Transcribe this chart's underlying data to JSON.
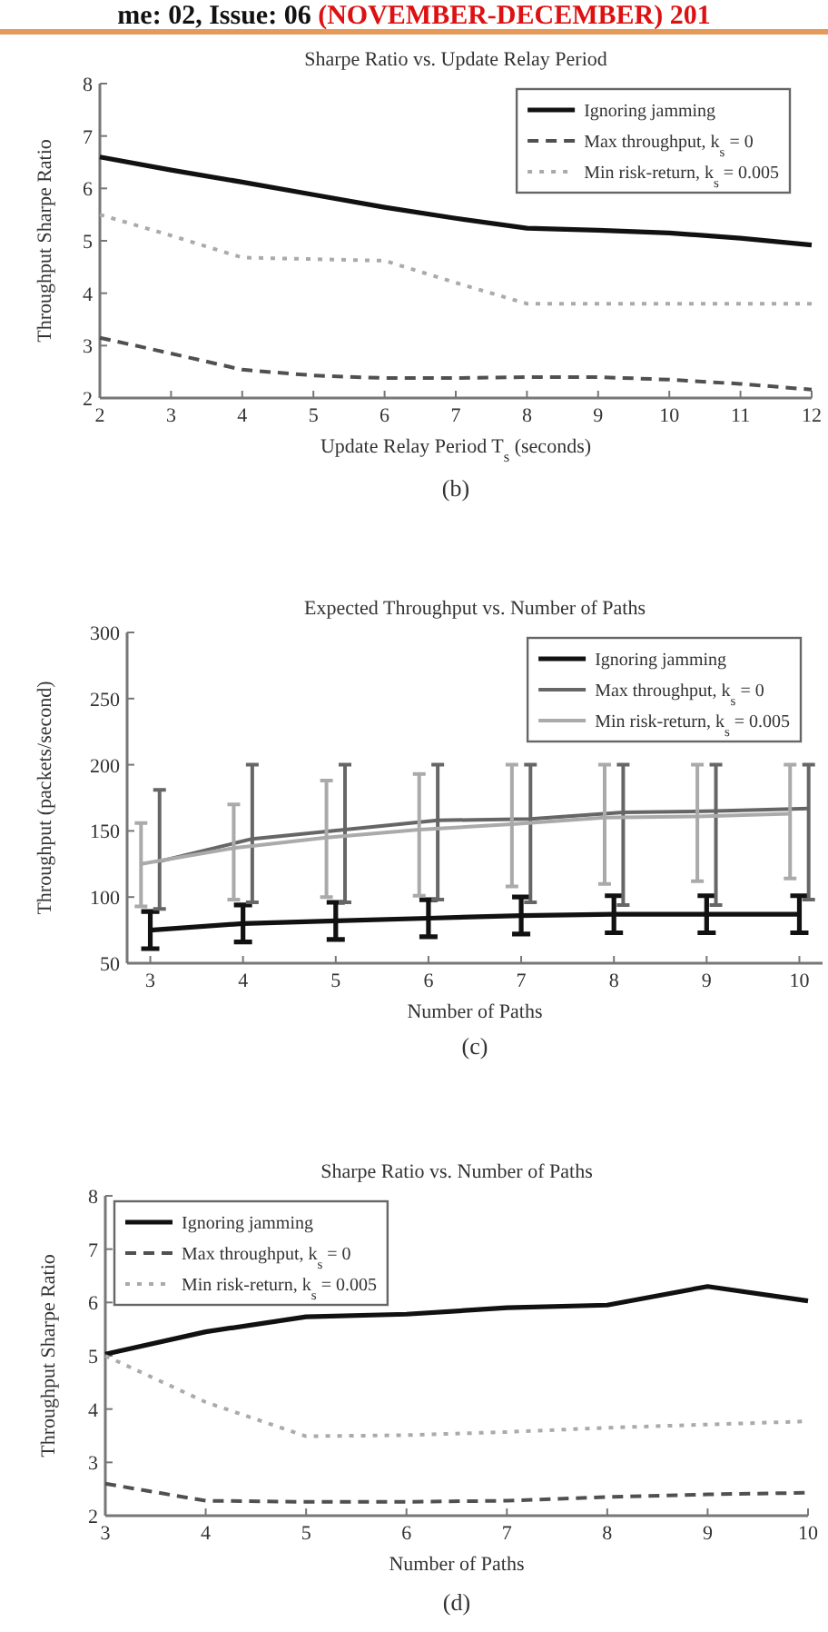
{
  "chart_data": [
    {
      "type": "line",
      "title": "Sharpe Ratio vs. Update Relay Period",
      "xlabel": "Update Relay Period T$_{s}$ (seconds)",
      "ylabel": "Throughput Sharpe Ratio",
      "annotations": [
        "me: 02, Issue: 06",
        "(NOVEMBER-DECEMBER) 201",
        "(b)"
      ],
      "x": [
        2,
        3,
        4,
        5,
        6,
        7,
        8,
        9,
        10,
        11,
        12
      ],
      "xlim": [
        2,
        12
      ],
      "xticks": [
        2,
        3,
        4,
        5,
        6,
        7,
        8,
        9,
        10,
        11,
        12
      ],
      "ylim": [
        2,
        8
      ],
      "yticks": [
        2,
        3,
        4,
        5,
        6,
        7,
        8
      ],
      "legend": "top right",
      "series": [
        {
          "name": "Ignoring jamming",
          "color": "#111111",
          "line_style": "solid",
          "values": [
            6.6,
            6.35,
            6.12,
            5.88,
            5.64,
            5.43,
            5.24,
            5.2,
            5.15,
            5.05,
            4.92
          ]
        },
        {
          "name": "Max throughput, k$_{s}$ = 0",
          "color": "#505050",
          "line_style": "dashed",
          "values": [
            3.15,
            2.85,
            2.54,
            2.43,
            2.38,
            2.38,
            2.4,
            2.4,
            2.35,
            2.27,
            2.16
          ]
        },
        {
          "name": "Min risk-return, k$_{s}$ = 0.005",
          "color": "#aaaaaa",
          "line_style": "dotted",
          "values": [
            5.5,
            5.1,
            4.68,
            4.65,
            4.62,
            4.2,
            3.8,
            3.8,
            3.8,
            3.8,
            3.8
          ]
        }
      ]
    },
    {
      "type": "line",
      "title": "Expected Throughput vs. Number of Paths",
      "xlabel": "Number of Paths",
      "ylabel": "Throughput (packets/second)",
      "annotations": [
        "(c)"
      ],
      "x": [
        3,
        4,
        5,
        6,
        7,
        8,
        9,
        10
      ],
      "xlim": [
        2.75,
        10.25
      ],
      "xticks": [
        3,
        4,
        5,
        6,
        7,
        8,
        9,
        10
      ],
      "ylim": [
        50,
        300
      ],
      "yticks": [
        50,
        100,
        150,
        200,
        250,
        300
      ],
      "legend": "top right",
      "series": [
        {
          "name": "Ignoring jamming",
          "color": "#111111",
          "line_style": "solid",
          "values": [
            75,
            80,
            82,
            84,
            86,
            87,
            87,
            87
          ],
          "errors": [
            14,
            14,
            14,
            14,
            14,
            14,
            14,
            14
          ]
        },
        {
          "name": "Max throughput, k$_{s}$ = 0",
          "color": "#666666",
          "line_style": "solid",
          "x": [
            3.1,
            4.1,
            5.1,
            6.1,
            7.1,
            8.1,
            9.1,
            10.1
          ],
          "values": [
            127,
            144,
            151,
            158,
            159,
            164,
            165,
            167
          ],
          "errors": [
            [
              91,
              181
            ],
            [
              96,
              200
            ],
            [
              96,
              200
            ],
            [
              98,
              200
            ],
            [
              96,
              200
            ],
            [
              94,
              200
            ],
            [
              94,
              200
            ],
            [
              98,
              200
            ]
          ]
        },
        {
          "name": "Min risk-return, k$_{s}$ = 0.005",
          "color": "#aaaaaa",
          "line_style": "solid",
          "x": [
            2.9,
            3.9,
            4.9,
            5.9,
            6.9,
            7.9,
            8.9,
            9.9
          ],
          "values": [
            125,
            137,
            145,
            151,
            155,
            160,
            161,
            163
          ],
          "errors": [
            [
              93,
              156
            ],
            [
              98,
              170
            ],
            [
              100,
              188
            ],
            [
              101,
              193
            ],
            [
              108,
              200
            ],
            [
              110,
              200
            ],
            [
              112,
              200
            ],
            [
              114,
              200
            ]
          ]
        }
      ]
    },
    {
      "type": "line",
      "title": "Sharpe Ratio vs. Number of Paths",
      "xlabel": "Number of Paths",
      "ylabel": "Throughput Sharpe Ratio",
      "annotations": [
        "(d)"
      ],
      "x": [
        3,
        4,
        5,
        6,
        7,
        8,
        9,
        10
      ],
      "xlim": [
        3,
        10
      ],
      "xticks": [
        3,
        4,
        5,
        6,
        7,
        8,
        9,
        10
      ],
      "ylim": [
        2,
        8
      ],
      "yticks": [
        2,
        3,
        4,
        5,
        6,
        7,
        8
      ],
      "legend": "top left",
      "series": [
        {
          "name": "Ignoring jamming",
          "color": "#111111",
          "line_style": "solid",
          "values": [
            5.03,
            5.45,
            5.73,
            5.78,
            5.9,
            5.95,
            6.3,
            6.03
          ]
        },
        {
          "name": "Max throughput, k$_{s}$ = 0",
          "color": "#505050",
          "line_style": "dashed",
          "values": [
            2.6,
            2.28,
            2.26,
            2.26,
            2.28,
            2.35,
            2.4,
            2.43
          ]
        },
        {
          "name": "Min risk-return, k$_{s}$ = 0.005",
          "color": "#aaaaaa",
          "line_style": "dotted",
          "values": [
            5.0,
            4.13,
            3.49,
            3.51,
            3.57,
            3.65,
            3.71,
            3.77
          ]
        }
      ]
    }
  ]
}
